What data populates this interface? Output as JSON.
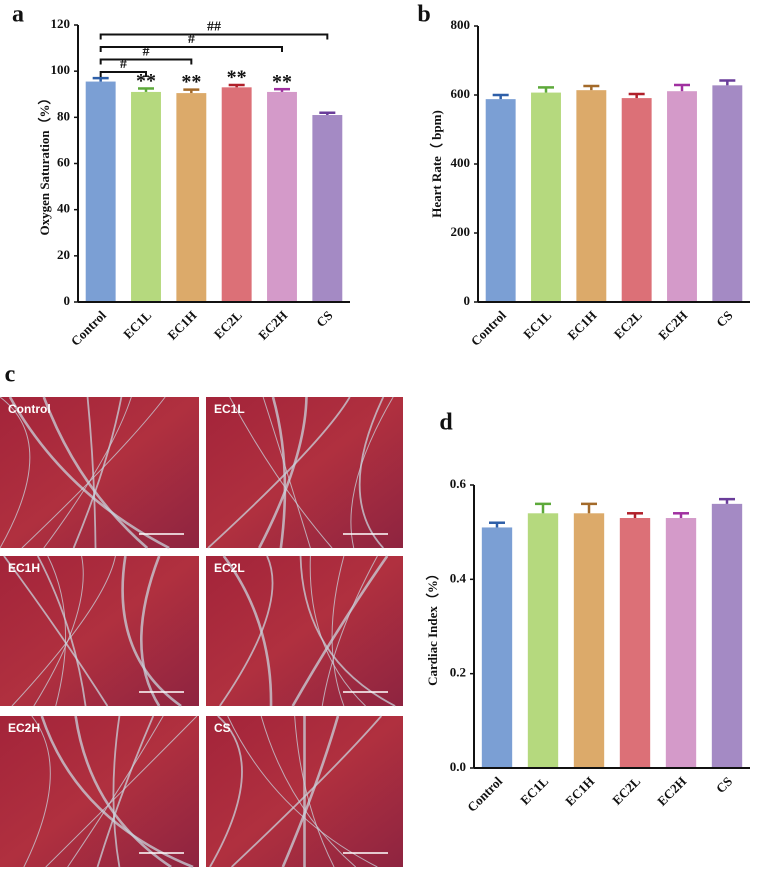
{
  "chart_data": [
    {
      "type": "bar",
      "panel": "a",
      "y_label": "Oxygen Saturation（%）",
      "categories": [
        "Control",
        "EC1L",
        "EC1H",
        "EC2L",
        "EC2H",
        "CS"
      ],
      "values": [
        95.5,
        91,
        90.5,
        93,
        91,
        81
      ],
      "errors": [
        1.5,
        1.5,
        1.5,
        1,
        1.2,
        1
      ],
      "colors": [
        "#7b9fd4",
        "#b5d97e",
        "#dcaa6a",
        "#dc7077",
        "#d49ac9",
        "#a48ac4"
      ],
      "error_colors": [
        "#2e5fa8",
        "#5da93a",
        "#a36a2a",
        "#b0202a",
        "#a030a0",
        "#6a3d9a"
      ],
      "bar_labels": [
        null,
        "**",
        "**",
        "**",
        "**",
        null
      ],
      "brackets": [
        {
          "text": "#",
          "categories": [
            "Control",
            "EC1L"
          ]
        },
        {
          "text": "#",
          "categories": [
            "Control",
            "EC1H"
          ]
        },
        {
          "text": "#",
          "categories": [
            "Control",
            "EC2H"
          ]
        },
        {
          "text": "##",
          "categories": [
            "Control",
            "CS"
          ]
        }
      ],
      "ylim": [
        0,
        120
      ],
      "yticks": [
        0,
        20,
        40,
        60,
        80,
        100,
        120
      ]
    },
    {
      "type": "bar",
      "panel": "b",
      "y_label": "Heart Rate（ bpm)",
      "categories": [
        "Control",
        "EC1L",
        "EC1H",
        "EC2L",
        "EC2H",
        "CS"
      ],
      "values": [
        588,
        607,
        614,
        591,
        611,
        628
      ],
      "errors": [
        12,
        15,
        12,
        12,
        18,
        14
      ],
      "colors": [
        "#7b9fd4",
        "#b5d97e",
        "#dcaa6a",
        "#dc7077",
        "#d49ac9",
        "#a48ac4"
      ],
      "error_colors": [
        "#2e5fa8",
        "#5da93a",
        "#a36a2a",
        "#b0202a",
        "#a030a0",
        "#6a3d9a"
      ],
      "ylim": [
        0,
        800
      ],
      "yticks": [
        0,
        200,
        400,
        600,
        800
      ]
    },
    {
      "type": "bar",
      "panel": "d",
      "y_label": "Cardiac Index（%）",
      "categories": [
        "Control",
        "EC1L",
        "EC1H",
        "EC2L",
        "EC2H",
        "CS"
      ],
      "values": [
        0.51,
        0.54,
        0.54,
        0.53,
        0.53,
        0.56
      ],
      "errors": [
        0.01,
        0.02,
        0.02,
        0.01,
        0.01,
        0.01
      ],
      "colors": [
        "#7b9fd4",
        "#b5d97e",
        "#dcaa6a",
        "#dc7077",
        "#d49ac9",
        "#a48ac4"
      ],
      "error_colors": [
        "#2e5fa8",
        "#5da93a",
        "#a36a2a",
        "#b0202a",
        "#a030a0",
        "#6a3d9a"
      ],
      "ylim": [
        0,
        0.6
      ],
      "yticks": [
        {
          "value": 0,
          "label": "0.0"
        },
        0.2,
        0.4,
        0.6
      ]
    }
  ],
  "image_panel": {
    "label": "c",
    "panels": [
      "Control",
      "EC1L",
      "EC1H",
      "EC2L",
      "EC2H",
      "CS"
    ]
  }
}
